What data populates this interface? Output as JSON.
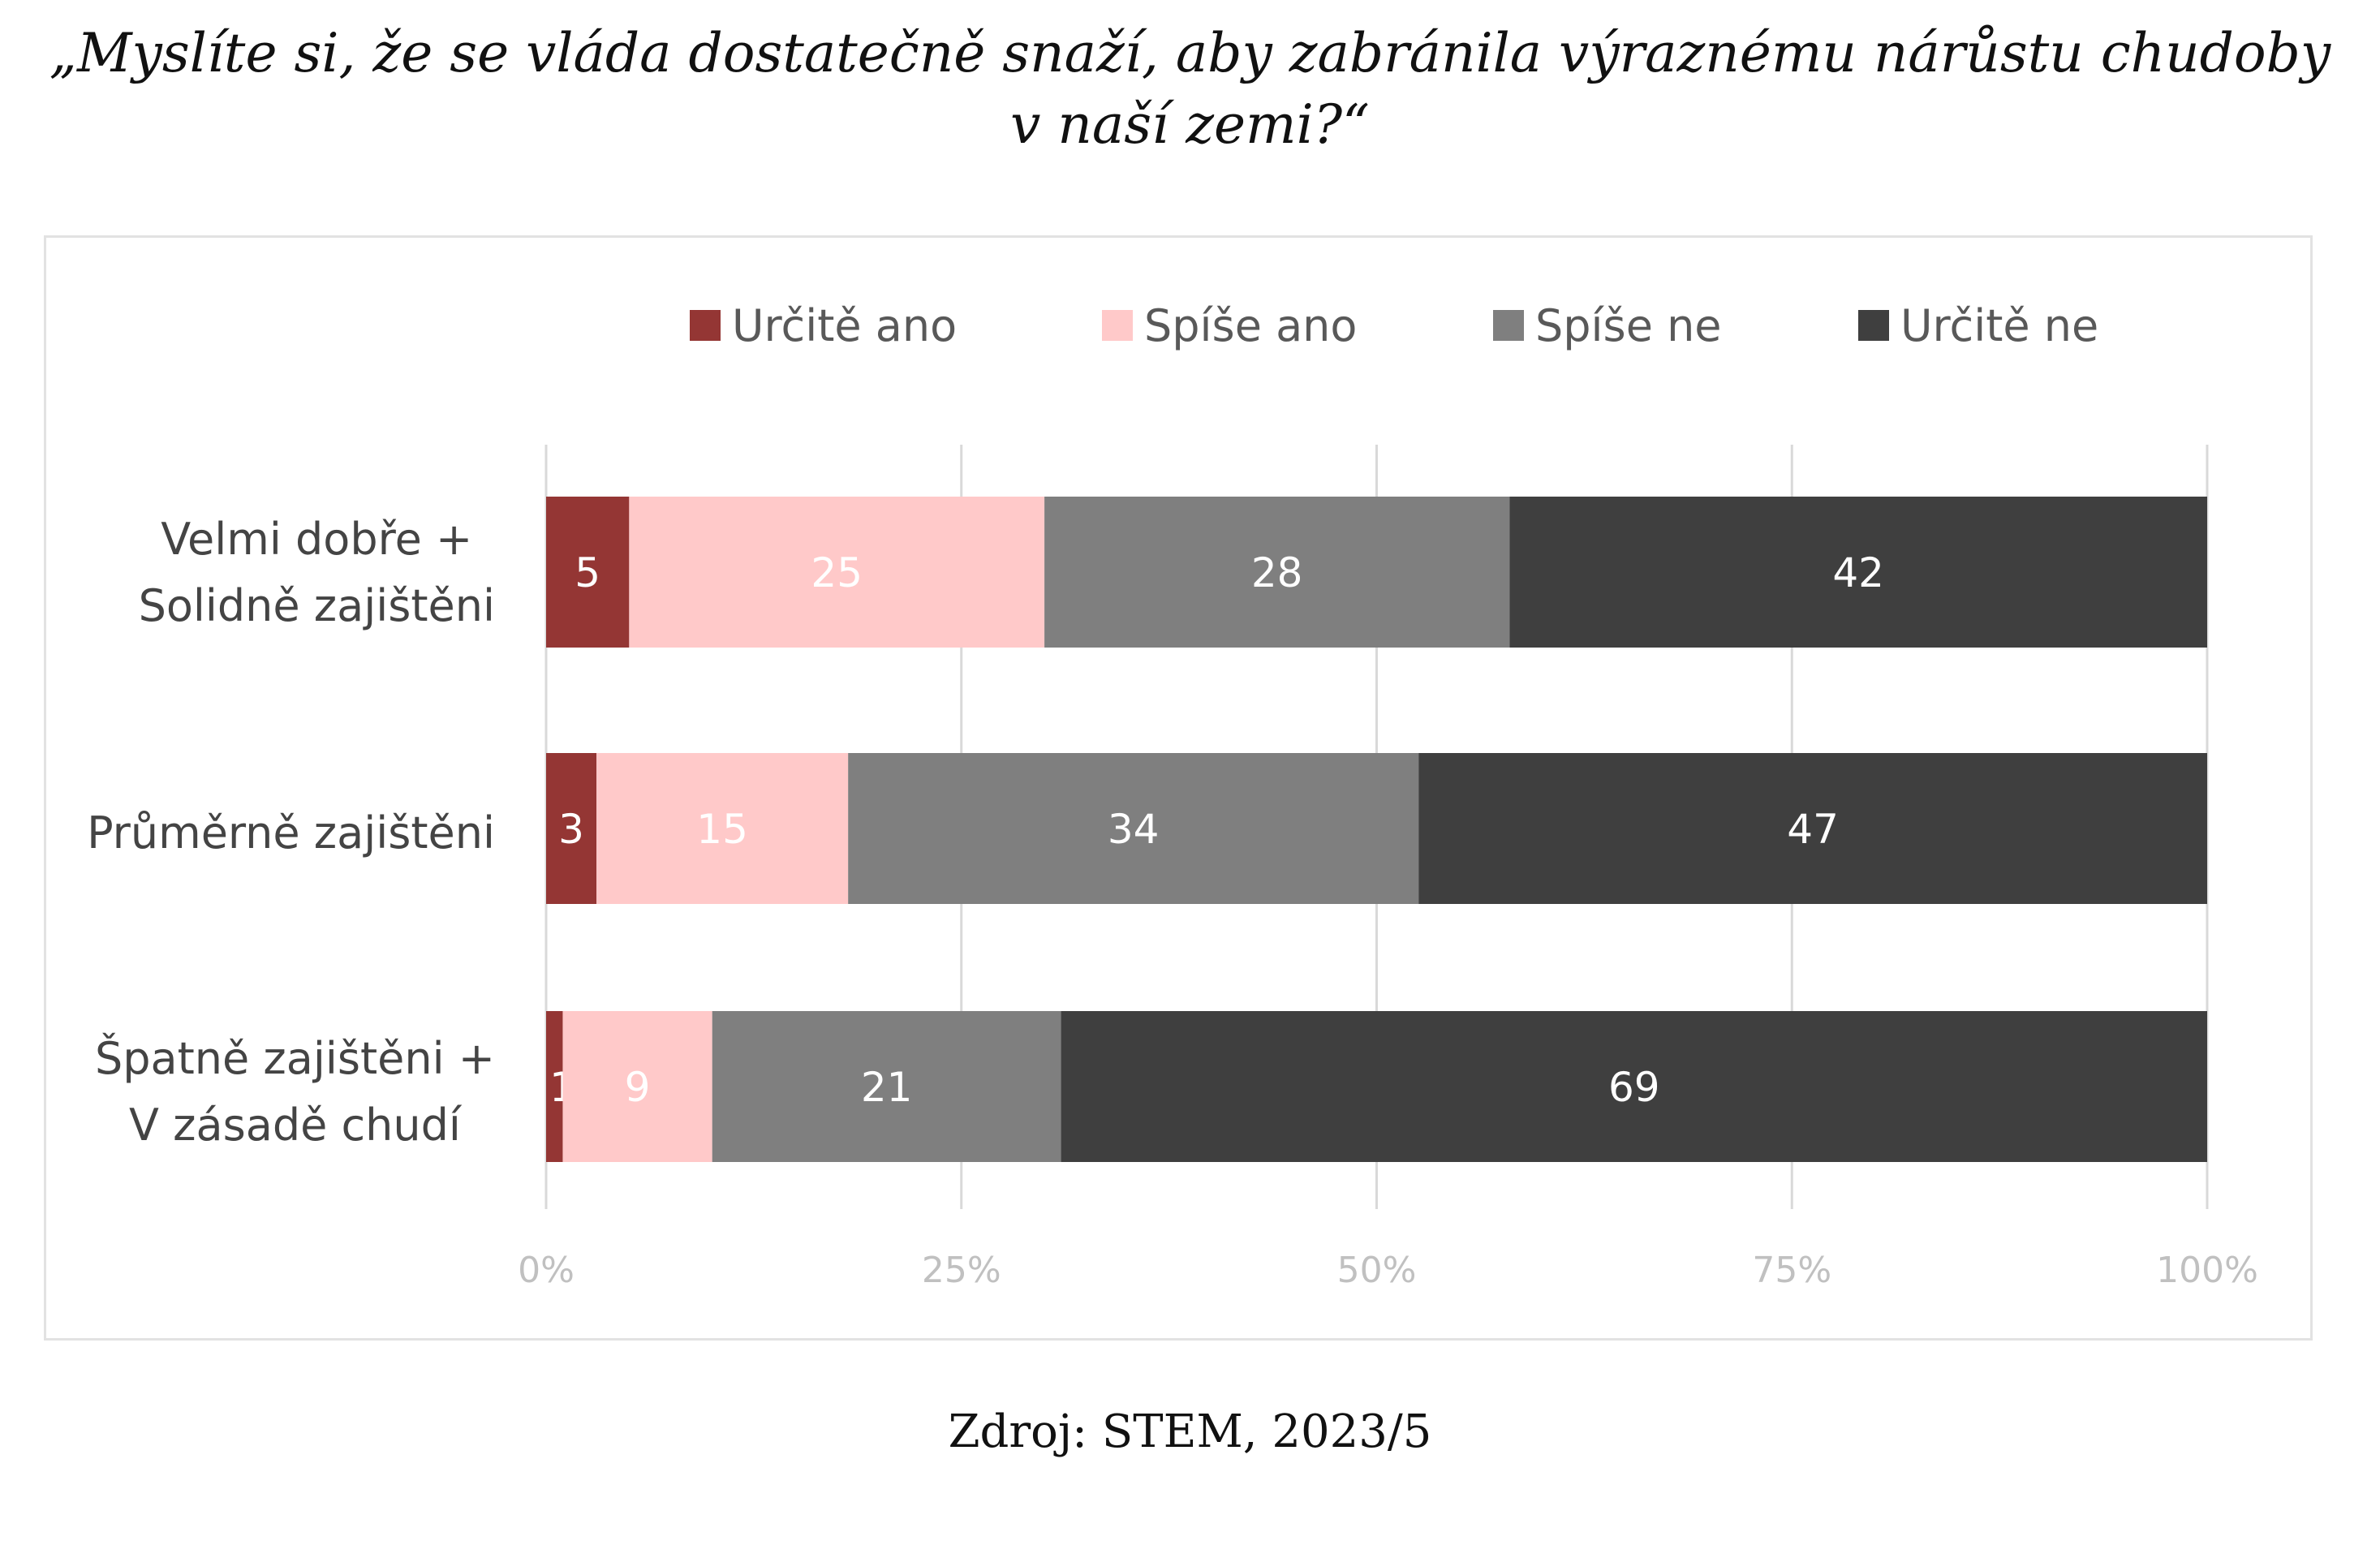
{
  "title_lines": [
    "„Myslíte si, že se vláda dostatečně snaží, aby zabránila výraznému nárůstu chudoby",
    "v naší zemi?“"
  ],
  "source": "Zdroj: STEM, 2023/5",
  "chart_data": {
    "type": "bar",
    "orientation": "horizontal",
    "stacked": true,
    "percent_stacked": true,
    "categories": [
      [
        "Velmi dobře +",
        "Solidně zajištěni"
      ],
      [
        "Průměrně zajištěni"
      ],
      [
        "Špatně zajištěni +",
        "V zásadě chudí"
      ]
    ],
    "series": [
      {
        "name": "Určitě ano",
        "color": "#943634",
        "label_color": "#ffffff",
        "values": [
          5,
          3,
          1
        ]
      },
      {
        "name": "Spíše ano",
        "color": "#ffc9c9",
        "label_color": "#ffffff",
        "values": [
          25,
          15,
          9
        ]
      },
      {
        "name": "Spíše ne",
        "color": "#7f7f7f",
        "label_color": "#ffffff",
        "values": [
          28,
          34,
          21
        ]
      },
      {
        "name": "Určitě ne",
        "color": "#3f3f3f",
        "label_color": "#ffffff",
        "values": [
          42,
          47,
          69
        ]
      }
    ],
    "x_ticks": [
      "0%",
      "25%",
      "50%",
      "75%",
      "100%"
    ],
    "xlim": [
      0,
      100
    ],
    "grid": true,
    "legend_position": "top"
  }
}
